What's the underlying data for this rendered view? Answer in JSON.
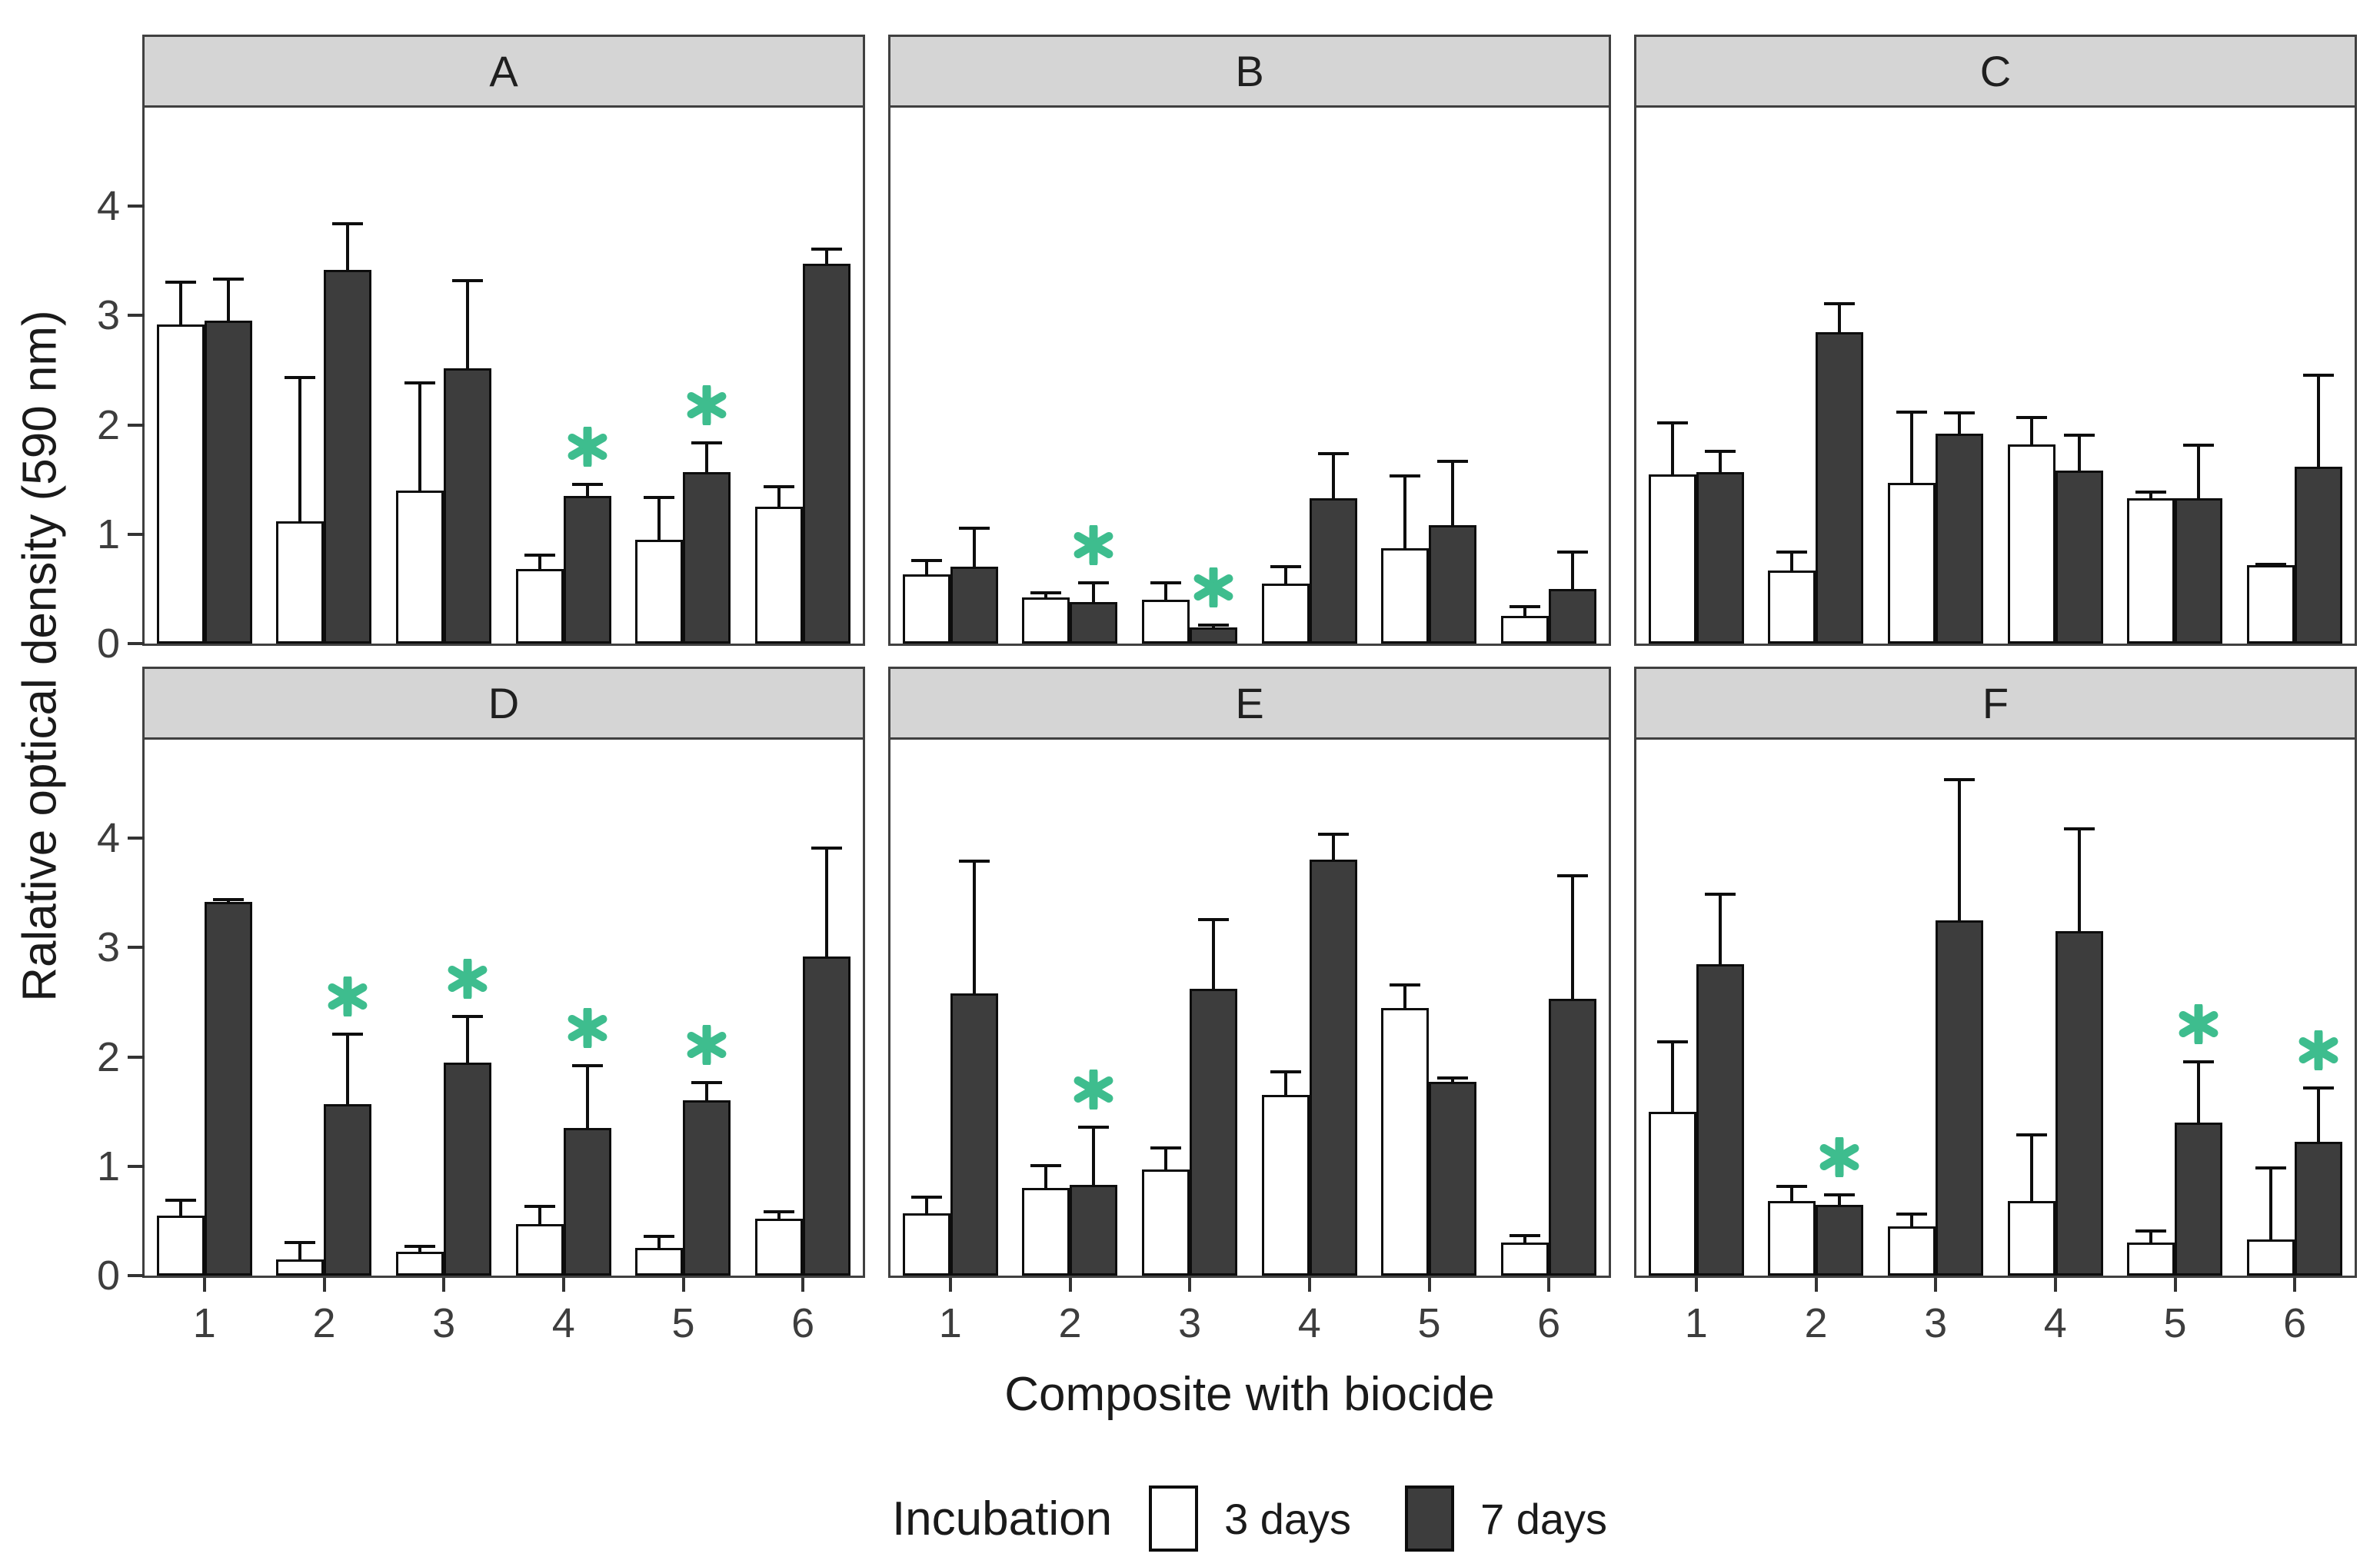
{
  "figure": {
    "y_axis_label": "Ralative optical density (590 nm)",
    "x_axis_label": "Composite with biocide",
    "legend": {
      "title": "Incubation",
      "items": [
        {
          "label": "3 days",
          "color": "#ffffff"
        },
        {
          "label": "7 days",
          "color": "#3d3d3d"
        }
      ]
    }
  },
  "chart_data": {
    "type": "bar",
    "categories": [
      "1",
      "2",
      "3",
      "4",
      "5",
      "6"
    ],
    "xlabel": "Composite with biocide",
    "ylabel": "Ralative optical density (590 nm)",
    "ylim": [
      0,
      4.9
    ],
    "yticks": [
      0,
      1,
      2,
      3,
      4
    ],
    "grid": false,
    "legend_position": "bottom",
    "series_names": [
      "3 days",
      "7 days"
    ],
    "bar_colors": {
      "3 days": "#ffffff",
      "7 days": "#3d3d3d"
    },
    "sig_marker": "*",
    "sig_color": "#3ebd8e",
    "facets": [
      {
        "label": "A",
        "days3": {
          "values": [
            2.92,
            1.12,
            1.4,
            0.68,
            0.95,
            1.25
          ],
          "err_top": [
            3.32,
            2.45,
            2.4,
            0.82,
            1.35,
            1.45
          ]
        },
        "days7": {
          "values": [
            2.95,
            3.42,
            2.52,
            1.35,
            1.57,
            3.47
          ],
          "err_top": [
            3.35,
            3.85,
            3.33,
            1.47,
            1.85,
            3.62
          ]
        },
        "sig": [
          false,
          false,
          false,
          true,
          true,
          false
        ]
      },
      {
        "label": "B",
        "days3": {
          "values": [
            0.63,
            0.42,
            0.4,
            0.55,
            0.87,
            0.25
          ],
          "err_top": [
            0.77,
            0.48,
            0.57,
            0.72,
            1.55,
            0.35
          ]
        },
        "days7": {
          "values": [
            0.7,
            0.38,
            0.15,
            1.33,
            1.08,
            0.5
          ],
          "err_top": [
            1.07,
            0.57,
            0.18,
            1.75,
            1.68,
            0.85
          ]
        },
        "sig": [
          false,
          true,
          true,
          false,
          false,
          false
        ]
      },
      {
        "label": "C",
        "days3": {
          "values": [
            1.55,
            0.67,
            1.47,
            1.82,
            1.33,
            0.72
          ],
          "err_top": [
            2.03,
            0.85,
            2.13,
            2.08,
            1.4,
            0.74
          ]
        },
        "days7": {
          "values": [
            1.57,
            2.85,
            1.92,
            1.58,
            1.33,
            1.62
          ],
          "err_top": [
            1.77,
            3.12,
            2.12,
            1.92,
            1.83,
            2.47
          ]
        },
        "sig": [
          false,
          false,
          false,
          false,
          false,
          false
        ]
      },
      {
        "label": "D",
        "days3": {
          "values": [
            0.55,
            0.15,
            0.22,
            0.47,
            0.25,
            0.52
          ],
          "err_top": [
            0.7,
            0.32,
            0.28,
            0.65,
            0.37,
            0.6
          ]
        },
        "days7": {
          "values": [
            3.42,
            1.57,
            1.95,
            1.35,
            1.6,
            2.92
          ],
          "err_top": [
            3.45,
            2.22,
            2.38,
            1.93,
            1.78,
            3.92
          ]
        },
        "sig": [
          false,
          true,
          true,
          true,
          true,
          false
        ]
      },
      {
        "label": "E",
        "days3": {
          "values": [
            0.57,
            0.8,
            0.97,
            1.65,
            2.45,
            0.3
          ],
          "err_top": [
            0.73,
            1.02,
            1.18,
            1.88,
            2.67,
            0.38
          ]
        },
        "days7": {
          "values": [
            2.58,
            0.83,
            2.62,
            3.8,
            1.77,
            2.53
          ],
          "err_top": [
            3.8,
            1.37,
            3.27,
            4.05,
            1.82,
            3.67
          ]
        },
        "sig": [
          false,
          true,
          false,
          false,
          false,
          false
        ]
      },
      {
        "label": "F",
        "days3": {
          "values": [
            1.5,
            0.68,
            0.45,
            0.68,
            0.3,
            0.33
          ],
          "err_top": [
            2.15,
            0.83,
            0.58,
            1.3,
            0.42,
            1.0
          ]
        },
        "days7": {
          "values": [
            2.85,
            0.65,
            3.25,
            3.15,
            1.4,
            1.22
          ],
          "err_top": [
            3.5,
            0.75,
            4.55,
            4.1,
            1.97,
            1.73
          ]
        },
        "sig": [
          false,
          true,
          false,
          false,
          true,
          true
        ]
      }
    ]
  }
}
